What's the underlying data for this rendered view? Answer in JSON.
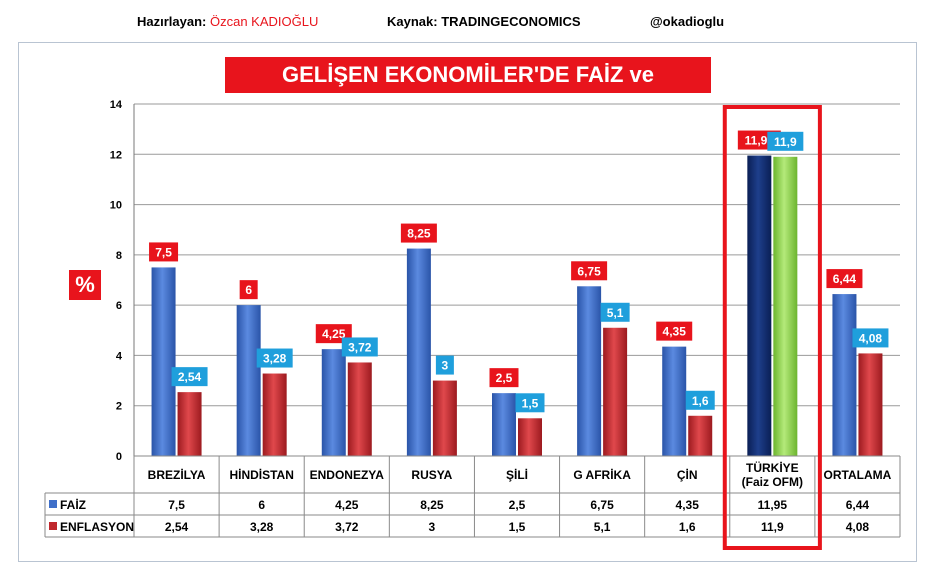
{
  "header": {
    "prepared_label": "Hazırlayan:",
    "prepared_name": "Özcan KADIOĞLU",
    "source": "Kaynak: TRADINGECONOMICS",
    "handle": "@okadioglu"
  },
  "colors": {
    "faiz": "#3f6fc9",
    "enflasyon": "#c0282d",
    "turkey_faiz": "#0e2a6e",
    "turkey_enflasyon": "#8fd14f",
    "highlight": "#e8141c",
    "accent_blue": "#1f9fdc"
  },
  "chart_data": {
    "type": "bar",
    "title": "GELİŞEN EKONOMİLER'DE FAİZ ve ENFLASYON",
    "ylabel": "%",
    "ylim": [
      0,
      14
    ],
    "yticks": [
      0,
      2,
      4,
      6,
      8,
      10,
      12,
      14
    ],
    "grid": true,
    "categories": [
      "BREZİLYA",
      "HİNDİSTAN",
      "ENDONEZYA",
      "RUSYA",
      "ŞİLİ",
      "G AFRİKA",
      "ÇİN",
      "TÜRKİYE\n(Faiz OFM)",
      "ORTALAMA"
    ],
    "category_lines": [
      [
        "BREZİLYA"
      ],
      [
        "HİNDİSTAN"
      ],
      [
        "ENDONEZYA"
      ],
      [
        "RUSYA"
      ],
      [
        "ŞİLİ"
      ],
      [
        "G AFRİKA"
      ],
      [
        "ÇİN"
      ],
      [
        "TÜRKİYE",
        "(Faiz OFM)"
      ],
      [
        "ORTALAMA"
      ]
    ],
    "highlighted_category": "TÜRKİYE\n(Faiz OFM)",
    "series": [
      {
        "name": "FAİZ",
        "values": [
          7.5,
          6,
          4.25,
          8.25,
          2.5,
          6.75,
          4.35,
          11.95,
          6.44
        ],
        "labels": [
          "7,5",
          "6",
          "4,25",
          "8,25",
          "2,5",
          "6,75",
          "4,35",
          "11,95",
          "6,44"
        ]
      },
      {
        "name": "ENFLASYON",
        "values": [
          2.54,
          3.28,
          3.72,
          3,
          1.5,
          5.1,
          1.6,
          11.9,
          4.08
        ],
        "labels": [
          "2,54",
          "3,28",
          "3,72",
          "3",
          "1,5",
          "5,1",
          "1,6",
          "11,9",
          "4,08"
        ]
      }
    ],
    "legend": "data-table"
  }
}
